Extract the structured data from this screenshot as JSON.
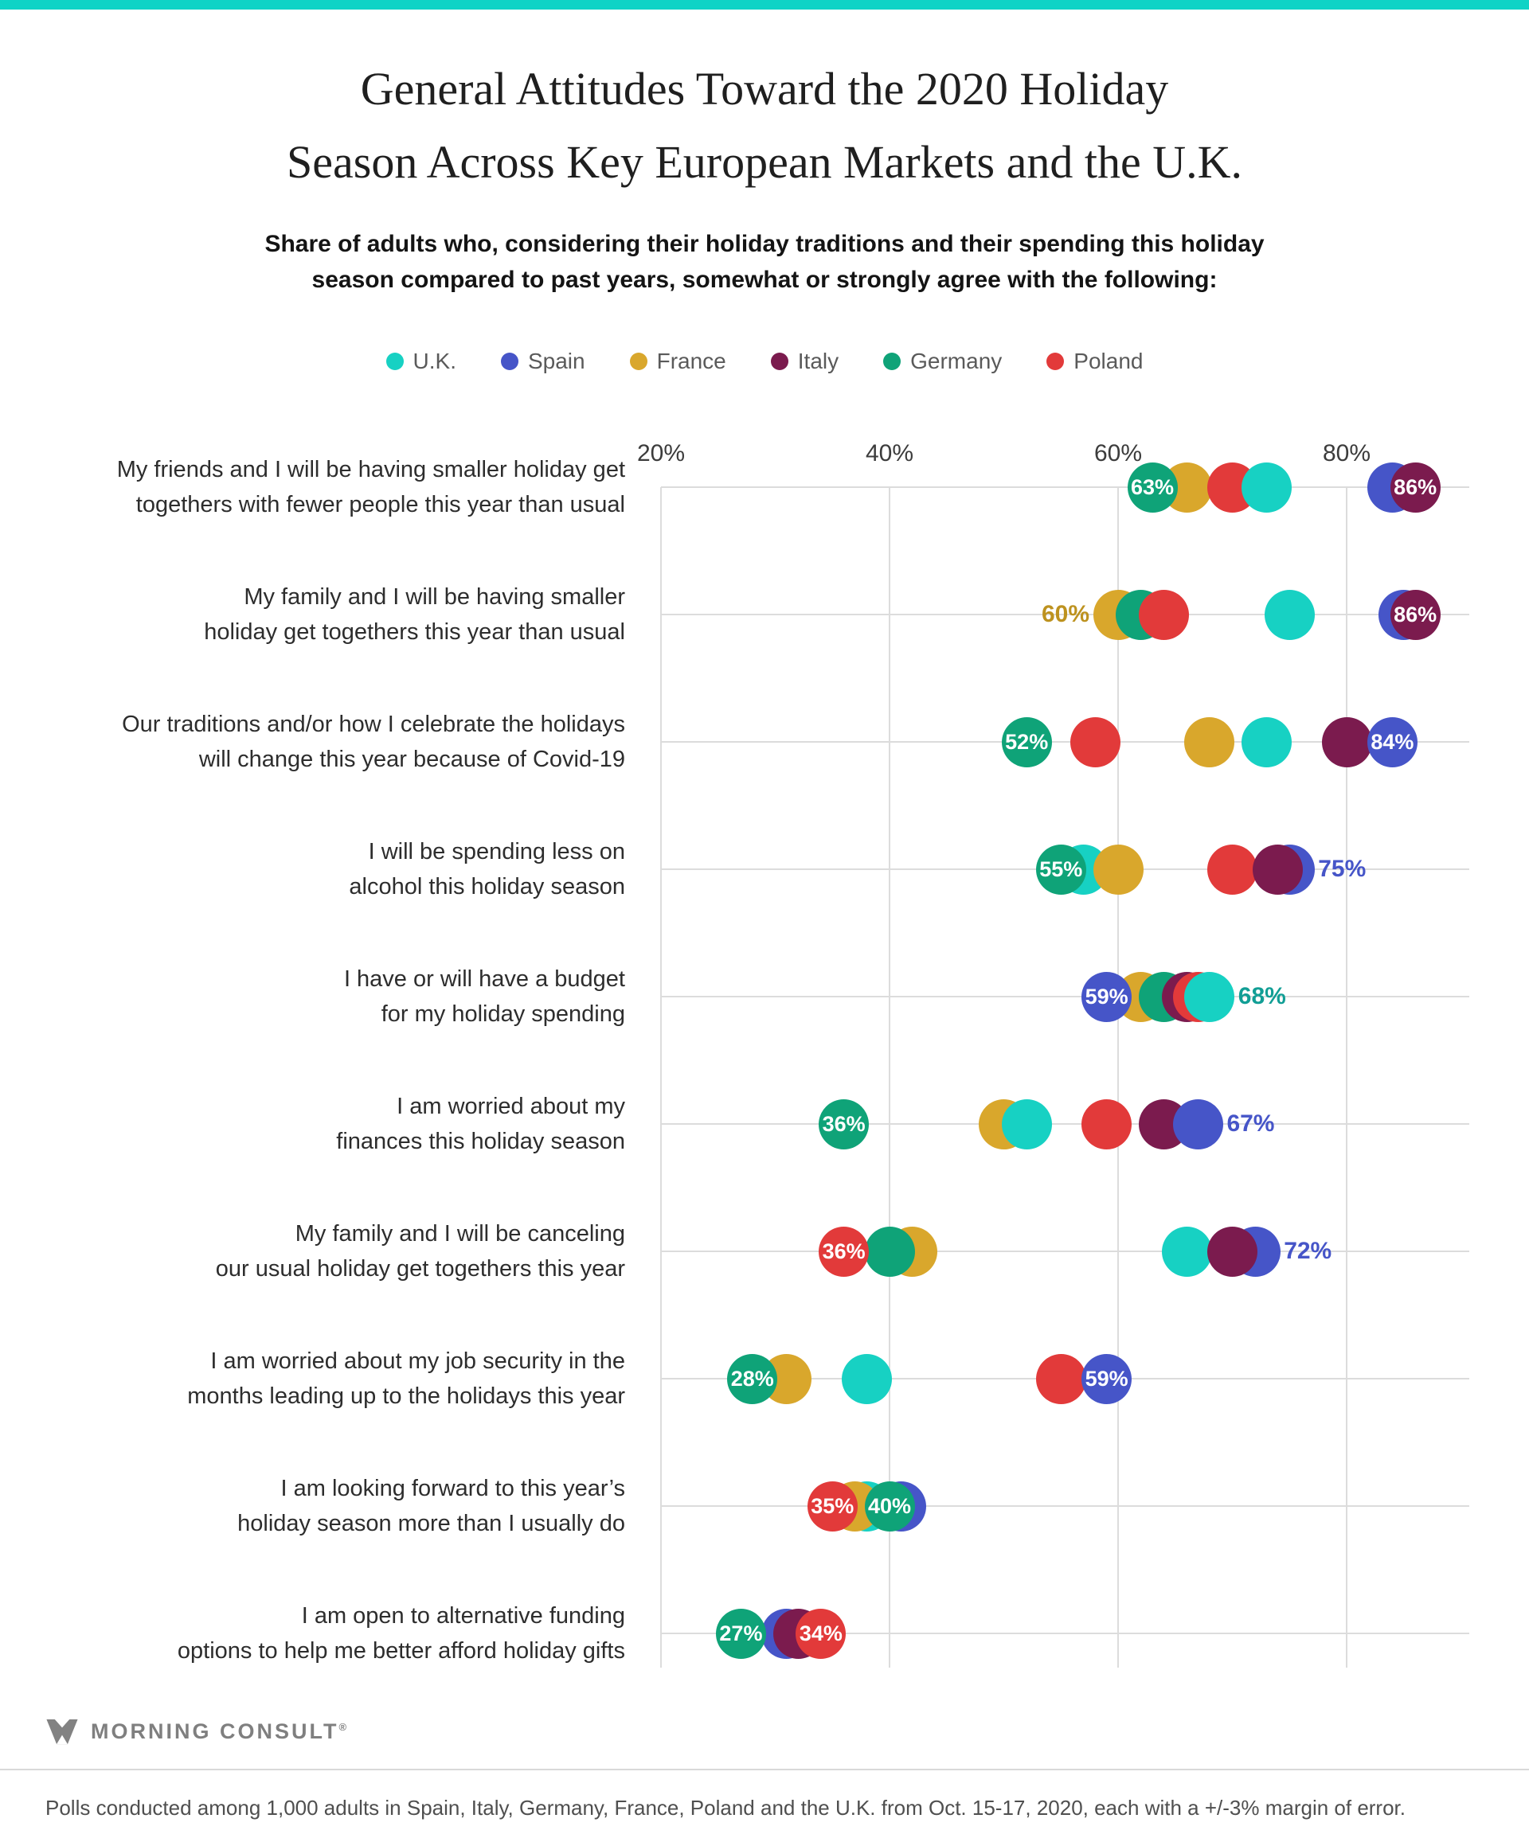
{
  "topbar": {
    "color": "#0fd3c6"
  },
  "header": {
    "title_lines": [
      "General Attitudes Toward the 2020 Holiday",
      "Season Across Key European Markets and the U.K."
    ],
    "subtitle_lines": [
      "Share of adults who, considering their holiday traditions and their spending this holiday",
      "season compared to past years, somewhat or strongly agree with the following:"
    ]
  },
  "legend": {
    "items": [
      {
        "label": "U.K.",
        "color": "#17d1c3"
      },
      {
        "label": "Spain",
        "color": "#4655c8"
      },
      {
        "label": "France",
        "color": "#d9a72c"
      },
      {
        "label": "Italy",
        "color": "#7b1b4e"
      },
      {
        "label": "Germany",
        "color": "#0fa378"
      },
      {
        "label": "Poland",
        "color": "#e23a3a"
      }
    ]
  },
  "chart_data": {
    "type": "scatter",
    "title": "General Attitudes Toward the 2020 Holiday Season Across Key European Markets and the U.K.",
    "subtitle": "Share of adults who, considering their holiday traditions and their spending this holiday season compared to past years, somewhat or strongly agree with the following:",
    "legend_entries": [
      "U.K.",
      "Spain",
      "France",
      "Italy",
      "Germany",
      "Poland"
    ],
    "series_colors": {
      "U.K.": "#17d1c3",
      "Spain": "#4655c8",
      "France": "#d9a72c",
      "Italy": "#7b1b4e",
      "Germany": "#0fa378",
      "Poland": "#e23a3a"
    },
    "external_label_colors": {
      "U.K.": "#119e95",
      "France": "#bd921f",
      "Spain": "#4655c8"
    },
    "x_axis": {
      "tick_labels": [
        "20%",
        "40%",
        "60%",
        "80%"
      ],
      "tick_values": [
        20,
        40,
        60,
        80
      ],
      "min": 20,
      "max": 91,
      "grid": true
    },
    "rows": [
      {
        "label_lines": [
          "My friends and I will be having smaller holiday get",
          "togethers with fewer people this year than usual"
        ],
        "dots": [
          {
            "country": "France",
            "value": 66
          },
          {
            "country": "Poland",
            "value": 70
          },
          {
            "country": "U.K.",
            "value": 73
          },
          {
            "country": "Spain",
            "value": 84
          },
          {
            "country": "Germany",
            "value": 63,
            "label": "63%",
            "label_pos": "inside"
          },
          {
            "country": "Italy",
            "value": 86,
            "label": "86%",
            "label_pos": "inside"
          }
        ]
      },
      {
        "label_lines": [
          "My family and I will be having smaller",
          "holiday get togethers this year than usual"
        ],
        "dots": [
          {
            "country": "France",
            "value": 60,
            "label": "60%",
            "label_pos": "left"
          },
          {
            "country": "Germany",
            "value": 62
          },
          {
            "country": "Poland",
            "value": 64
          },
          {
            "country": "U.K.",
            "value": 75
          },
          {
            "country": "Spain",
            "value": 85
          },
          {
            "country": "Italy",
            "value": 86,
            "label": "86%",
            "label_pos": "inside"
          }
        ]
      },
      {
        "label_lines": [
          "Our traditions and/or how I celebrate the holidays",
          "will change this year because of Covid-19"
        ],
        "dots": [
          {
            "country": "Germany",
            "value": 52,
            "label": "52%",
            "label_pos": "inside"
          },
          {
            "country": "Poland",
            "value": 58
          },
          {
            "country": "France",
            "value": 68
          },
          {
            "country": "U.K.",
            "value": 73
          },
          {
            "country": "Italy",
            "value": 80
          },
          {
            "country": "Spain",
            "value": 84,
            "label": "84%",
            "label_pos": "inside"
          }
        ]
      },
      {
        "label_lines": [
          "I will be spending less on",
          "alcohol this holiday season"
        ],
        "dots": [
          {
            "country": "U.K.",
            "value": 57
          },
          {
            "country": "France",
            "value": 60
          },
          {
            "country": "Poland",
            "value": 70
          },
          {
            "country": "Spain",
            "value": 75,
            "label": "75%",
            "label_pos": "right"
          },
          {
            "country": "Italy",
            "value": 74
          },
          {
            "country": "Germany",
            "value": 55,
            "label": "55%",
            "label_pos": "inside"
          }
        ]
      },
      {
        "label_lines": [
          "I have or will have a budget",
          "for my holiday spending"
        ],
        "dots": [
          {
            "country": "France",
            "value": 62
          },
          {
            "country": "Germany",
            "value": 64
          },
          {
            "country": "Italy",
            "value": 66
          },
          {
            "country": "Poland",
            "value": 67
          },
          {
            "country": "U.K.",
            "value": 68,
            "label": "68%",
            "label_pos": "right"
          },
          {
            "country": "Spain",
            "value": 59,
            "label": "59%",
            "label_pos": "inside"
          }
        ]
      },
      {
        "label_lines": [
          "I am worried about my",
          "finances this holiday season"
        ],
        "dots": [
          {
            "country": "Germany",
            "value": 36,
            "label": "36%",
            "label_pos": "inside"
          },
          {
            "country": "France",
            "value": 50
          },
          {
            "country": "U.K.",
            "value": 52
          },
          {
            "country": "Poland",
            "value": 59
          },
          {
            "country": "Italy",
            "value": 64
          },
          {
            "country": "Spain",
            "value": 67,
            "label": "67%",
            "label_pos": "right"
          }
        ]
      },
      {
        "label_lines": [
          "My family and I will be canceling",
          "our usual holiday get togethers this year"
        ],
        "dots": [
          {
            "country": "France",
            "value": 42
          },
          {
            "country": "Germany",
            "value": 40
          },
          {
            "country": "U.K.",
            "value": 66
          },
          {
            "country": "Spain",
            "value": 72,
            "label": "72%",
            "label_pos": "right"
          },
          {
            "country": "Italy",
            "value": 70
          },
          {
            "country": "Poland",
            "value": 36,
            "label": "36%",
            "label_pos": "inside"
          }
        ]
      },
      {
        "label_lines": [
          "I am worried about my job security in the",
          "months leading up to the holidays this year"
        ],
        "dots": [
          {
            "country": "France",
            "value": 31
          },
          {
            "country": "Germany",
            "value": 28,
            "label": "28%",
            "label_pos": "inside"
          },
          {
            "country": "U.K.",
            "value": 38
          },
          {
            "country": "Poland",
            "value": 55
          },
          {
            "country": "Spain",
            "value": 59,
            "label": "59%",
            "label_pos": "inside"
          }
        ]
      },
      {
        "label_lines": [
          "I am looking forward to this year’s",
          "holiday season more than I usually do"
        ],
        "dots": [
          {
            "country": "Spain",
            "value": 41
          },
          {
            "country": "U.K.",
            "value": 38
          },
          {
            "country": "France",
            "value": 37
          },
          {
            "country": "Germany",
            "value": 40,
            "label": "40%",
            "label_pos": "inside"
          },
          {
            "country": "Poland",
            "value": 35,
            "label": "35%",
            "label_pos": "inside"
          }
        ]
      },
      {
        "label_lines": [
          "I am open to alternative funding",
          "options to help me better afford holiday gifts"
        ],
        "dots": [
          {
            "country": "Spain",
            "value": 31
          },
          {
            "country": "Italy",
            "value": 32
          },
          {
            "country": "Germany",
            "value": 27,
            "label": "27%",
            "label_pos": "inside"
          },
          {
            "country": "Poland",
            "value": 34,
            "label": "34%",
            "label_pos": "inside"
          }
        ]
      }
    ]
  },
  "footer": {
    "brand": "MORNING CONSULT",
    "reg": "®",
    "note": "Polls conducted among 1,000 adults in Spain, Italy, Germany, France, Poland and the U.K. from Oct. 15-17, 2020, each with a +/-3% margin of error."
  }
}
